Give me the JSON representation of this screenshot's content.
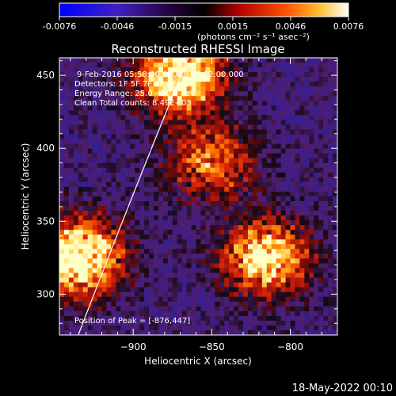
{
  "colorbar": {
    "ticks": [
      "-0.0076",
      "-0.0046",
      "-0.0015",
      "0.0015",
      "0.0046",
      "0.0076"
    ],
    "units": "(photons cm⁻² s⁻¹ asec⁻²)",
    "range": [
      -0.0076,
      0.0076
    ]
  },
  "plot": {
    "title": "Reconstructed RHESSI Image",
    "xlabel": "Heliocentric X (arcsec)",
    "ylabel": "Heliocentric Y (arcsec)"
  },
  "annotations": {
    "time": "9-Feb-2016 05:58:00.000 to 06:02:00.000",
    "detectors": "Detectors: 1F 5F 7F 8F 9F",
    "energy": "Energy Range: 25.0 - 50.0 keV",
    "clean": "Clean    Total counts: 8.49E+03",
    "peak": "Position of Peak = [-876,447]"
  },
  "footer": {
    "date": "18-May-2022 00:10"
  },
  "chart_data": {
    "type": "heatmap",
    "title": "Reconstructed RHESSI Image",
    "xlabel": "Heliocentric X (arcsec)",
    "ylabel": "Heliocentric Y (arcsec)",
    "xlim": [
      -947,
      -770
    ],
    "ylim": [
      272,
      462
    ],
    "xticks": [
      -900,
      -850,
      -800
    ],
    "yticks": [
      300,
      350,
      400,
      450
    ],
    "colorbar_range": [
      -0.0076,
      0.0076
    ],
    "colormap": [
      "#0000ff",
      "#5020a0",
      "#000000",
      "#b01010",
      "#ff6000",
      "#ffff80",
      "#ffffff"
    ],
    "bright_regions": [
      {
        "x": -870,
        "y": 450,
        "level": 0.85
      },
      {
        "x": -935,
        "y": 325,
        "level": 0.9
      },
      {
        "x": -815,
        "y": 325,
        "level": 0.75
      },
      {
        "x": -850,
        "y": 390,
        "level": 0.5
      }
    ],
    "peak": [
      -876,
      447
    ],
    "limb_curve": [
      [
        -865,
        462
      ],
      [
        -900,
        370
      ],
      [
        -935,
        272
      ]
    ]
  }
}
